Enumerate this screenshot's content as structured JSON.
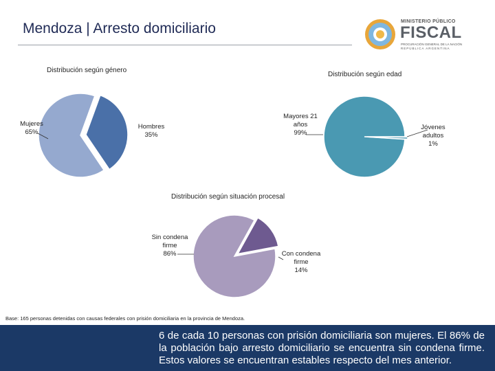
{
  "header": {
    "title_bold": "Mendoza",
    "title_sep": " | ",
    "title_rest": "Arresto domiciliario"
  },
  "logo": {
    "line1": "MINISTERIO PÚBLICO",
    "line2": "FISCAL",
    "line3": "PROCURACIÓN GENERAL DE LA NACIÓN",
    "line4": "REPÚBLICA ARGENTINA"
  },
  "chart_data": [
    {
      "type": "pie",
      "title": "Distribución según género",
      "slices": [
        {
          "label": "Mujeres",
          "percent_label": "65%",
          "value": 65,
          "color": "#95a9cf"
        },
        {
          "label": "Hombres",
          "percent_label": "35%",
          "value": 35,
          "color": "#4a70a8"
        }
      ]
    },
    {
      "type": "pie",
      "title": "Distribución según edad",
      "slices": [
        {
          "label_lines": [
            "Mayores 21",
            "años"
          ],
          "percent_label": "99%",
          "value": 99,
          "color": "#4a99b2"
        },
        {
          "label_lines": [
            "Jóvenes",
            "adultos"
          ],
          "percent_label": "1%",
          "value": 1,
          "color": "#7fb6c8"
        }
      ]
    },
    {
      "type": "pie",
      "title": "Distribución según situación procesal",
      "slices": [
        {
          "label_lines": [
            "Sin condena",
            "firme"
          ],
          "percent_label": "86%",
          "value": 86,
          "color": "#a89bbd"
        },
        {
          "label_lines": [
            "Con condena",
            "firme"
          ],
          "percent_label": "14%",
          "value": 14,
          "color": "#6e5a90"
        }
      ]
    }
  ],
  "note": "Base: 165 personas detenidas con causas federales con prisión domiciliaria en la provincia de Mendoza.",
  "footer": {
    "text": "6 de cada 10 personas con prisión domiciliaria son mujeres. El 86% de la población bajo arresto domiciliario se encuentra sin condena firme. Estos valores se encuentran estables respecto del mes anterior."
  }
}
